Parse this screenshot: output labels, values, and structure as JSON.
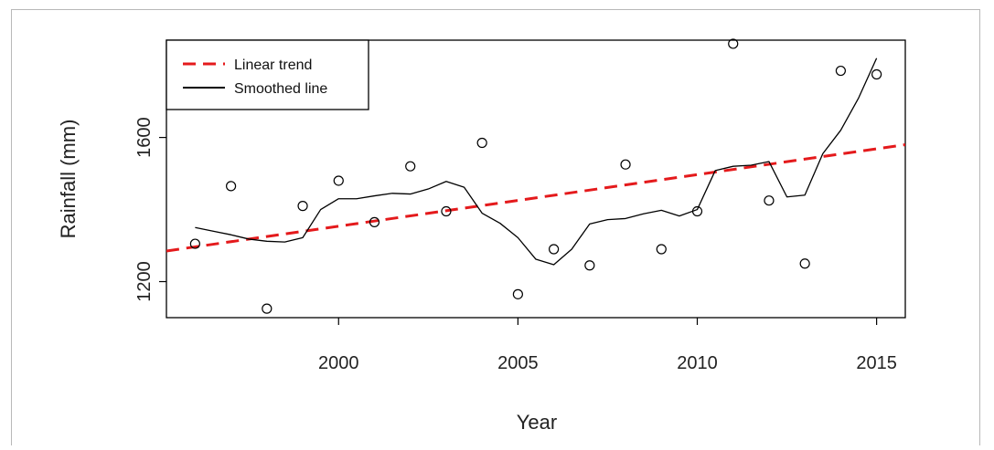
{
  "chart_data": {
    "type": "scatter",
    "xlabel": "Year",
    "ylabel": "Rainfall (mm)",
    "xlim": [
      1995.2,
      2015.8
    ],
    "ylim": [
      1100,
      1870
    ],
    "x_ticks": [
      2000,
      2005,
      2010,
      2015
    ],
    "y_ticks": [
      1200,
      1600
    ],
    "x_tick_labels": [
      "2000",
      "2005",
      "2010",
      "2015"
    ],
    "y_tick_labels": [
      "1200",
      "1600"
    ],
    "legend_position": "top-left",
    "grid": false,
    "colors": {
      "points": "#000000",
      "smoothed": "#000000",
      "trend": "#e41a1c"
    },
    "points": {
      "x": [
        1996,
        1997,
        1998,
        1999,
        2000,
        2001,
        2002,
        2003,
        2004,
        2005,
        2006,
        2007,
        2008,
        2009,
        2010,
        2011,
        2012,
        2013,
        2014,
        2015
      ],
      "y": [
        1305,
        1465,
        1125,
        1410,
        1480,
        1365,
        1520,
        1395,
        1585,
        1165,
        1290,
        1245,
        1525,
        1290,
        1395,
        1860,
        1425,
        1250,
        1785,
        1775
      ]
    },
    "series": [
      {
        "name": "Linear trend",
        "style": "dashed",
        "x": [
          1995.2,
          2015.8
        ],
        "y": [
          1285,
          1580
        ]
      },
      {
        "name": "Smoothed line",
        "style": "solid",
        "x": [
          1996,
          1996.5,
          1997,
          1997.5,
          1998,
          1998.5,
          1999,
          1999.5,
          2000,
          2000.5,
          2001,
          2001.5,
          2002,
          2002.5,
          2003,
          2003.5,
          2004,
          2004.5,
          2005,
          2005.5,
          2006,
          2006.5,
          2007,
          2007.5,
          2008,
          2008.5,
          2009,
          2009.5,
          2010,
          2010.5,
          2011,
          2011.5,
          2012,
          2012.5,
          2013,
          2013.5,
          2014,
          2014.5,
          2015
        ],
        "y": [
          1350,
          1340,
          1330,
          1318,
          1312,
          1310,
          1322,
          1400,
          1430,
          1430,
          1438,
          1445,
          1443,
          1457,
          1478,
          1462,
          1390,
          1362,
          1322,
          1262,
          1247,
          1290,
          1360,
          1372,
          1375,
          1388,
          1398,
          1382,
          1400,
          1508,
          1520,
          1523,
          1533,
          1435,
          1440,
          1555,
          1620,
          1710,
          1820
        ]
      }
    ]
  }
}
